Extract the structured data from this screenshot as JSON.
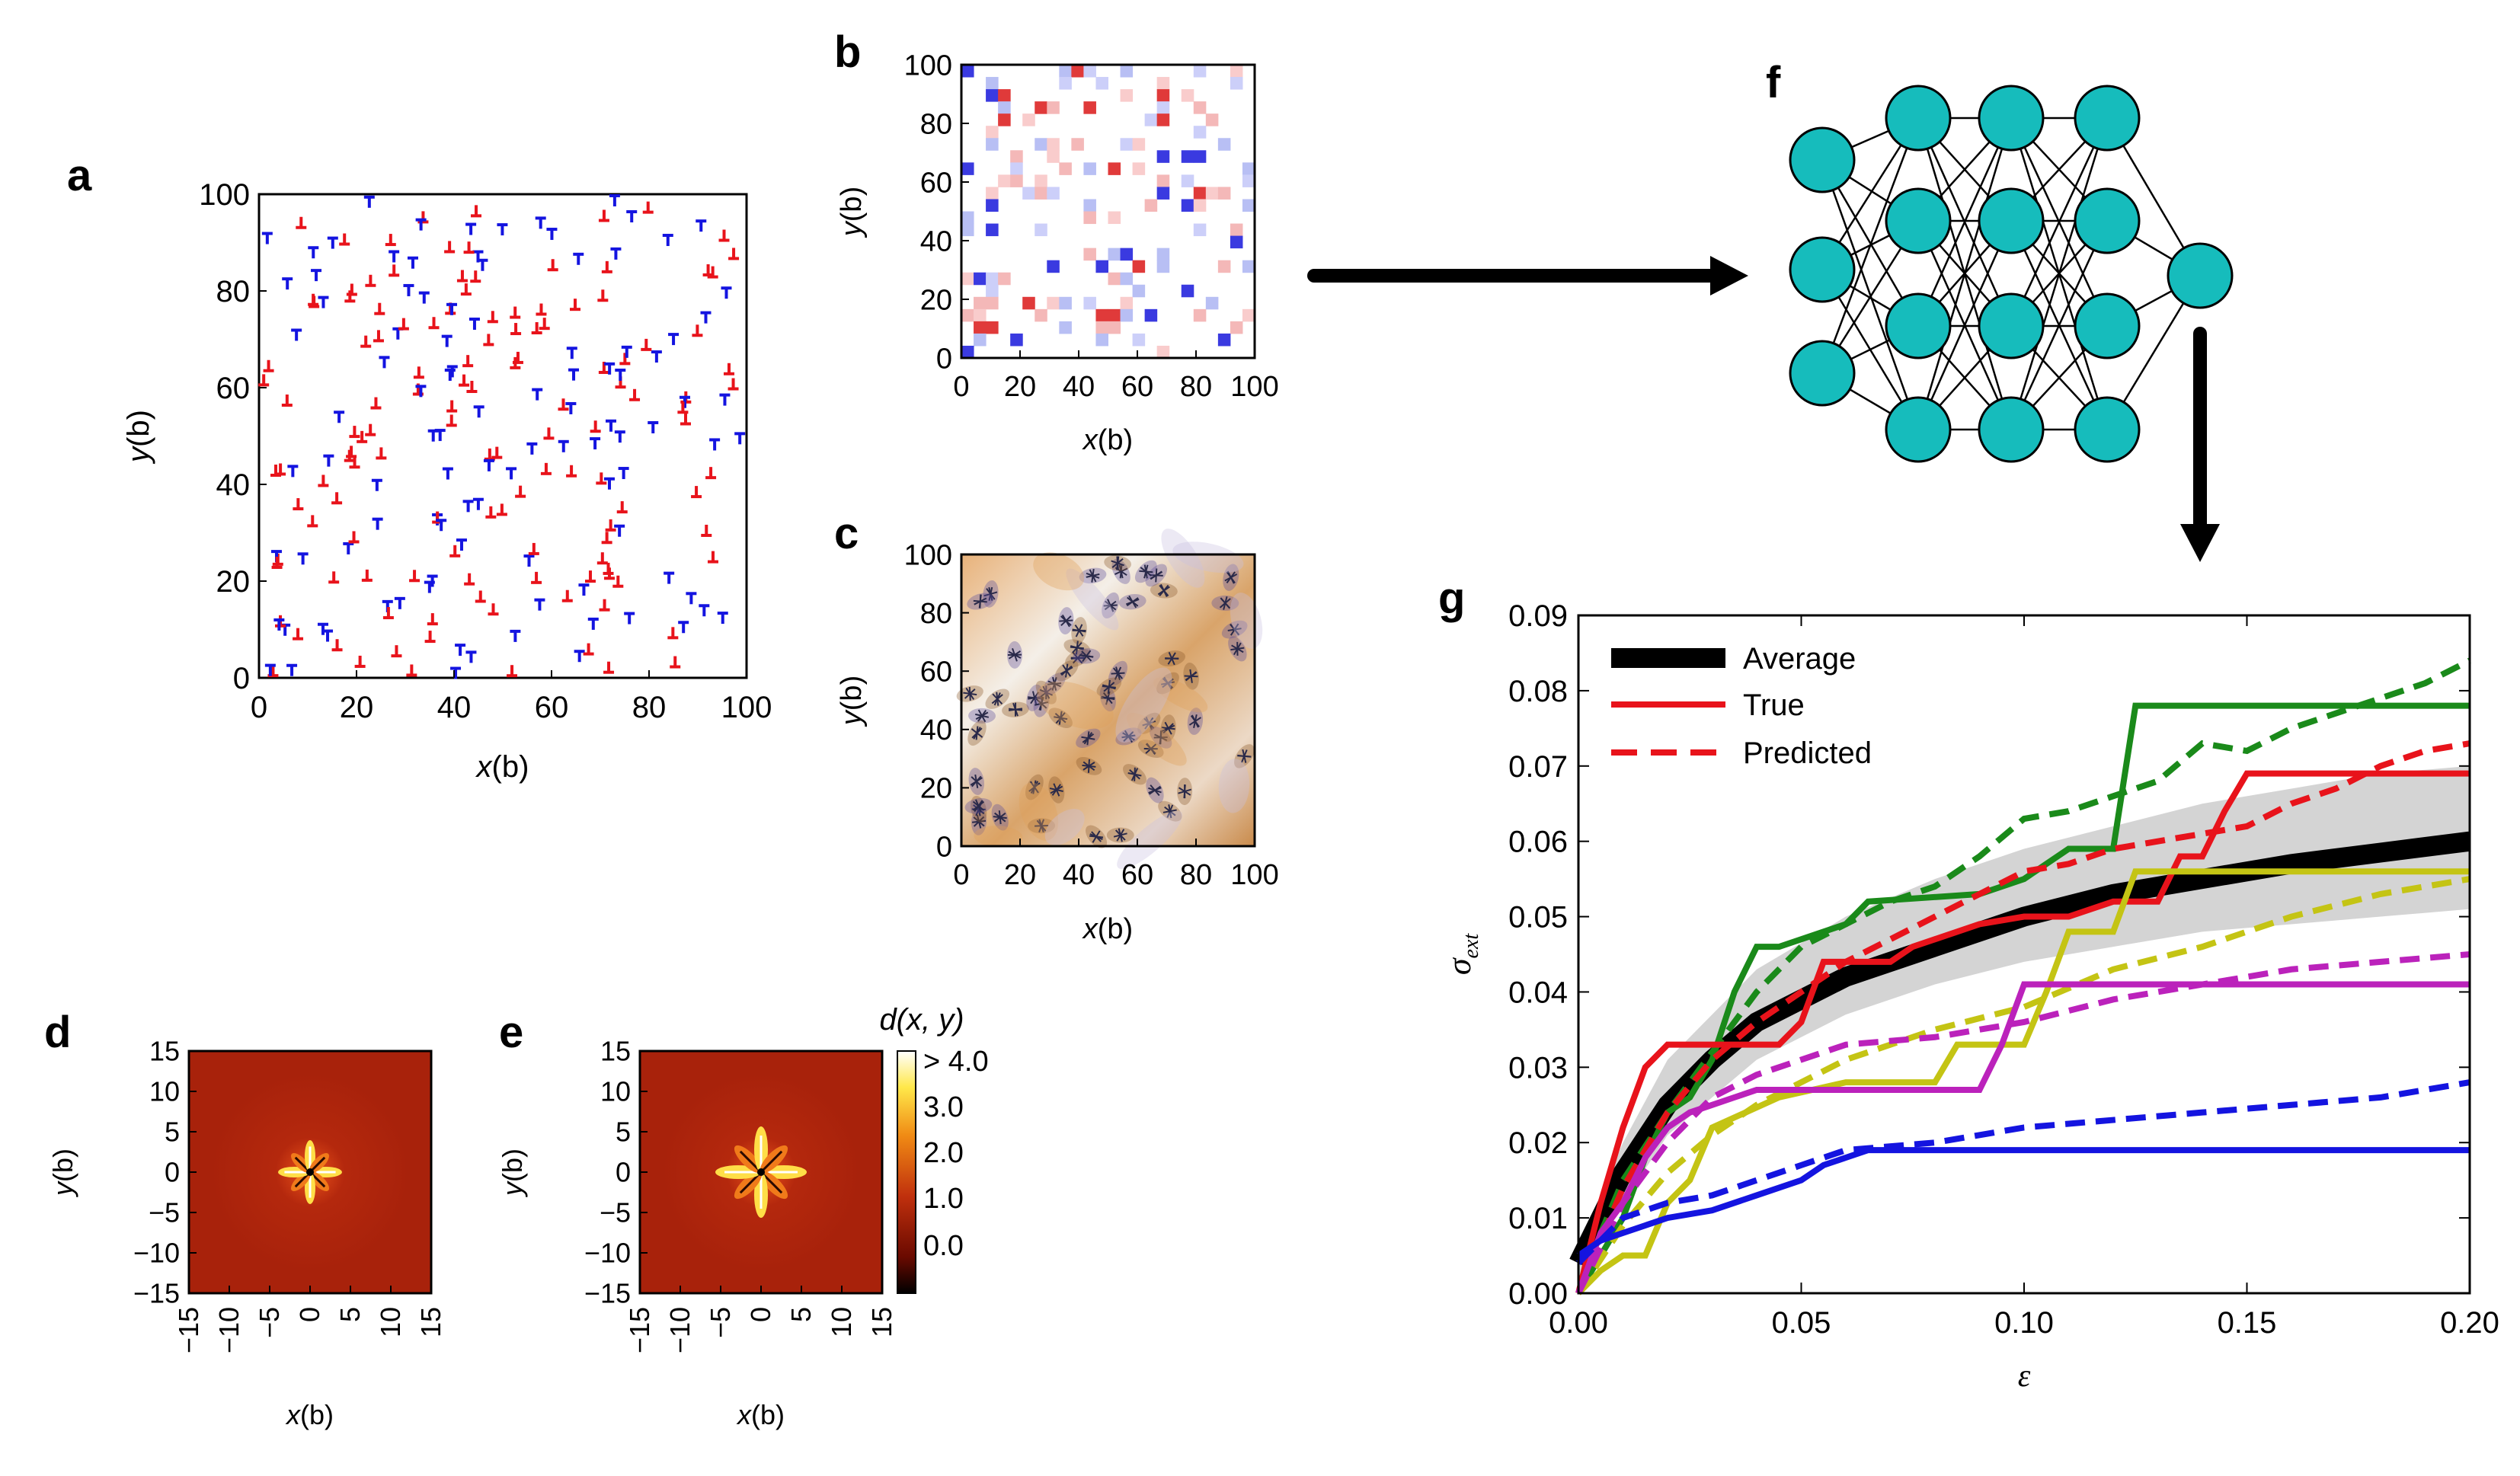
{
  "panel_labels": {
    "a": "a",
    "b": "b",
    "c": "c",
    "d": "d",
    "e": "e",
    "f": "f",
    "g": "g"
  },
  "colors": {
    "red": "#e8131b",
    "blue": "#1414e0",
    "green": "#1a8a1a",
    "yellow": "#c4c414",
    "magenta": "#bb22bb",
    "node": "#16bcbc",
    "band": "#d4d4d4"
  },
  "chart_data": [
    {
      "id": "a",
      "type": "scatter",
      "xlabel_pre": "x",
      "xlabel_post": "(b)",
      "ylabel_pre": "y",
      "ylabel_post": "(b)",
      "xlim": [
        0,
        100
      ],
      "ylim": [
        0,
        100
      ],
      "xticks": [
        "0",
        "20",
        "40",
        "60",
        "80",
        "100"
      ],
      "yticks": [
        "0",
        "20",
        "40",
        "60",
        "80",
        "100"
      ],
      "series": [
        {
          "name": "positive dislocations",
          "color": "#e8131b",
          "marker": "⊥"
        },
        {
          "name": "negative dislocations",
          "color": "#1414e0",
          "marker": "T"
        }
      ]
    },
    {
      "id": "b",
      "type": "heatmap",
      "xlabel_pre": "x",
      "xlabel_post": "(b)",
      "ylabel_pre": "y",
      "ylabel_post": "(b)",
      "xlim": [
        0,
        100
      ],
      "ylim": [
        0,
        100
      ],
      "xticks": [
        "0",
        "20",
        "40",
        "60",
        "80",
        "100"
      ],
      "yticks": [
        "0",
        "20",
        "40",
        "60",
        "80",
        "100"
      ]
    },
    {
      "id": "c",
      "type": "heatmap",
      "xlabel_pre": "x",
      "xlabel_post": "(b)",
      "ylabel_pre": "y",
      "ylabel_post": "(b)",
      "xlim": [
        0,
        100
      ],
      "ylim": [
        0,
        100
      ],
      "xticks": [
        "0",
        "20",
        "40",
        "60",
        "80",
        "100"
      ],
      "yticks": [
        "0",
        "20",
        "40",
        "60",
        "80",
        "100"
      ]
    },
    {
      "id": "d",
      "type": "heatmap",
      "xlabel_pre": "x",
      "xlabel_post": "(b)",
      "ylabel_pre": "y",
      "ylabel_post": "(b)",
      "xlim": [
        -15,
        15
      ],
      "ylim": [
        -15,
        15
      ],
      "xticks": [
        "−15",
        "−10",
        "−5",
        "0",
        "5",
        "10",
        "15"
      ],
      "yticks": [
        "15",
        "10",
        "5",
        "0",
        "−5",
        "−10",
        "−15"
      ]
    },
    {
      "id": "e",
      "type": "heatmap",
      "xlabel_pre": "x",
      "xlabel_post": "(b)",
      "ylabel_pre": "y",
      "ylabel_post": "(b)",
      "xlim": [
        -15,
        15
      ],
      "ylim": [
        -15,
        15
      ],
      "xticks": [
        "−15",
        "−10",
        "−5",
        "0",
        "5",
        "10",
        "15"
      ],
      "yticks": [
        "15",
        "10",
        "5",
        "0",
        "−5",
        "−10",
        "−15"
      ],
      "colorbar": {
        "title": "d(x, y)",
        "ticks": [
          "> 4.0",
          "3.0",
          "2.0",
          "1.0",
          "0.0"
        ]
      }
    },
    {
      "id": "f",
      "type": "diagram",
      "title": "",
      "layers": [
        3,
        4,
        4,
        4,
        1
      ]
    },
    {
      "id": "g",
      "type": "line",
      "xlabel": "ε",
      "ylabel": "σ",
      "ylabel_sub": "ext",
      "xlim": [
        0,
        0.2
      ],
      "ylim": [
        0,
        0.09
      ],
      "xticks": [
        "0.00",
        "0.05",
        "0.10",
        "0.15",
        "0.20"
      ],
      "yticks": [
        "0.00",
        "0.01",
        "0.02",
        "0.03",
        "0.04",
        "0.05",
        "0.06",
        "0.07",
        "0.08",
        "0.09"
      ],
      "legend": {
        "position": "top-left",
        "average": "Average",
        "true": "True",
        "predicted": "Predicted"
      },
      "band": {
        "x": [
          0,
          0.01,
          0.02,
          0.04,
          0.06,
          0.08,
          0.1,
          0.12,
          0.14,
          0.16,
          0.18,
          0.2
        ],
        "lower": [
          0.002,
          0.012,
          0.021,
          0.031,
          0.037,
          0.041,
          0.044,
          0.046,
          0.048,
          0.049,
          0.05,
          0.051
        ],
        "upper": [
          0.006,
          0.02,
          0.031,
          0.043,
          0.05,
          0.055,
          0.059,
          0.062,
          0.065,
          0.067,
          0.069,
          0.07
        ]
      },
      "average": {
        "x": [
          0,
          0.01,
          0.02,
          0.03,
          0.04,
          0.06,
          0.08,
          0.1,
          0.12,
          0.14,
          0.16,
          0.18,
          0.2
        ],
        "y": [
          0.004,
          0.016,
          0.025,
          0.031,
          0.036,
          0.042,
          0.046,
          0.05,
          0.053,
          0.055,
          0.057,
          0.0585,
          0.06
        ]
      },
      "series": [
        {
          "name": "green",
          "color": "#1a8a1a",
          "true": {
            "x": [
              0,
              0.005,
              0.01,
              0.015,
              0.02,
              0.025,
              0.03,
              0.035,
              0.04,
              0.045,
              0.06,
              0.065,
              0.09,
              0.1,
              0.11,
              0.12,
              0.125,
              0.2
            ],
            "y": [
              0,
              0.005,
              0.01,
              0.018,
              0.024,
              0.026,
              0.031,
              0.04,
              0.046,
              0.046,
              0.049,
              0.052,
              0.053,
              0.055,
              0.059,
              0.059,
              0.078,
              0.078
            ]
          },
          "pred": {
            "x": [
              0,
              0.005,
              0.01,
              0.02,
              0.03,
              0.04,
              0.05,
              0.06,
              0.07,
              0.08,
              0.09,
              0.1,
              0.11,
              0.12,
              0.13,
              0.14,
              0.15,
              0.16,
              0.17,
              0.18,
              0.19,
              0.2
            ],
            "y": [
              0,
              0.008,
              0.015,
              0.024,
              0.032,
              0.04,
              0.046,
              0.049,
              0.052,
              0.054,
              0.058,
              0.063,
              0.064,
              0.066,
              0.068,
              0.073,
              0.072,
              0.075,
              0.077,
              0.079,
              0.081,
              0.084
            ]
          }
        },
        {
          "name": "red",
          "color": "#e8131b",
          "true": {
            "x": [
              0,
              0.005,
              0.01,
              0.015,
              0.02,
              0.045,
              0.05,
              0.055,
              0.07,
              0.075,
              0.09,
              0.1,
              0.11,
              0.12,
              0.13,
              0.135,
              0.14,
              0.145,
              0.15,
              0.2
            ],
            "y": [
              0,
              0.012,
              0.022,
              0.03,
              0.033,
              0.033,
              0.036,
              0.044,
              0.044,
              0.046,
              0.049,
              0.05,
              0.05,
              0.052,
              0.052,
              0.058,
              0.058,
              0.064,
              0.069,
              0.069
            ]
          },
          "pred": {
            "x": [
              0,
              0.01,
              0.02,
              0.03,
              0.04,
              0.05,
              0.06,
              0.07,
              0.08,
              0.09,
              0.1,
              0.11,
              0.12,
              0.13,
              0.14,
              0.15,
              0.16,
              0.17,
              0.18,
              0.19,
              0.2
            ],
            "y": [
              0,
              0.014,
              0.024,
              0.031,
              0.036,
              0.04,
              0.044,
              0.047,
              0.05,
              0.053,
              0.056,
              0.057,
              0.059,
              0.06,
              0.061,
              0.062,
              0.065,
              0.067,
              0.07,
              0.072,
              0.073
            ]
          }
        },
        {
          "name": "yellow",
          "color": "#c4c414",
          "true": {
            "x": [
              0,
              0.005,
              0.01,
              0.015,
              0.02,
              0.025,
              0.03,
              0.045,
              0.06,
              0.08,
              0.085,
              0.1,
              0.105,
              0.11,
              0.12,
              0.125,
              0.2
            ],
            "y": [
              0,
              0.003,
              0.005,
              0.005,
              0.012,
              0.015,
              0.022,
              0.026,
              0.028,
              0.028,
              0.033,
              0.033,
              0.04,
              0.048,
              0.048,
              0.056,
              0.056
            ]
          },
          "pred": {
            "x": [
              0,
              0.01,
              0.02,
              0.03,
              0.04,
              0.05,
              0.06,
              0.08,
              0.1,
              0.12,
              0.14,
              0.16,
              0.18,
              0.2
            ],
            "y": [
              0,
              0.009,
              0.016,
              0.021,
              0.025,
              0.028,
              0.031,
              0.035,
              0.038,
              0.043,
              0.046,
              0.05,
              0.053,
              0.055
            ]
          }
        },
        {
          "name": "magenta",
          "color": "#bb22bb",
          "true": {
            "x": [
              0,
              0.005,
              0.01,
              0.015,
              0.02,
              0.025,
              0.03,
              0.035,
              0.04,
              0.055,
              0.065,
              0.09,
              0.095,
              0.1,
              0.12,
              0.125,
              0.2
            ],
            "y": [
              0,
              0.008,
              0.012,
              0.018,
              0.022,
              0.024,
              0.025,
              0.026,
              0.027,
              0.027,
              0.027,
              0.027,
              0.033,
              0.041,
              0.041,
              0.041,
              0.041
            ]
          },
          "pred": {
            "x": [
              0,
              0.01,
              0.02,
              0.03,
              0.04,
              0.06,
              0.08,
              0.1,
              0.12,
              0.14,
              0.16,
              0.18,
              0.2
            ],
            "y": [
              0,
              0.012,
              0.02,
              0.026,
              0.029,
              0.033,
              0.034,
              0.036,
              0.039,
              0.041,
              0.043,
              0.044,
              0.045
            ]
          }
        },
        {
          "name": "blue",
          "color": "#1414e0",
          "true": {
            "x": [
              0,
              0.005,
              0.01,
              0.015,
              0.02,
              0.03,
              0.04,
              0.05,
              0.055,
              0.06,
              0.065,
              0.2
            ],
            "y": [
              0.005,
              0.007,
              0.008,
              0.009,
              0.01,
              0.011,
              0.013,
              0.015,
              0.017,
              0.018,
              0.019,
              0.019
            ]
          },
          "pred": {
            "x": [
              0,
              0.01,
              0.02,
              0.03,
              0.04,
              0.05,
              0.06,
              0.08,
              0.1,
              0.12,
              0.14,
              0.16,
              0.18,
              0.2
            ],
            "y": [
              0.004,
              0.01,
              0.012,
              0.013,
              0.015,
              0.017,
              0.019,
              0.02,
              0.022,
              0.023,
              0.024,
              0.025,
              0.026,
              0.028
            ]
          }
        }
      ]
    }
  ]
}
